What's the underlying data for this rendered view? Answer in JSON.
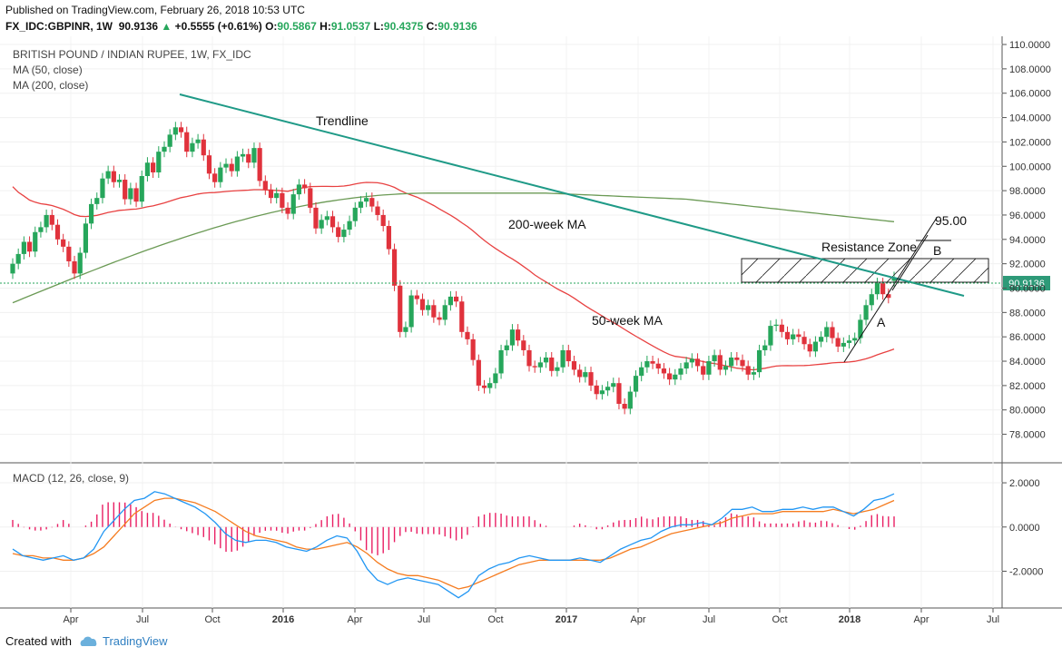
{
  "header": {
    "published": "Published on TradingView.com, February 26, 2018 10:53 UTC",
    "symbol": "FX_IDC:GBPINR, 1W",
    "last": "90.9136",
    "change": "+0.5555 (+0.61%)",
    "o_label": "O:",
    "o_val": "90.5867",
    "h_label": "H:",
    "h_val": "91.0537",
    "l_label": "L:",
    "l_val": "90.4375",
    "c_label": "C:",
    "c_val": "90.9136"
  },
  "footer": {
    "created_with": "Created with",
    "brand": "TradingView"
  },
  "colors": {
    "up": "#26a65b",
    "down": "#e0323c",
    "ma50": "#e84141",
    "ma200": "#6b9a55",
    "trend": "#1f9a87",
    "macd": "#2196f3",
    "signal": "#f57c20",
    "hist_up": "#e91e63"
  },
  "chart_data": [
    {
      "type": "candlestick",
      "title": "BRITISH POUND / INDIAN RUPEE, 1W, FX_IDC",
      "legend": [
        "MA (50, close)",
        "MA (200, close)"
      ],
      "x_ticks": [
        "Apr",
        "Jul",
        "Oct",
        "2016",
        "Apr",
        "Jul",
        "Oct",
        "2017",
        "Apr",
        "Jul",
        "Oct",
        "2018",
        "Apr",
        "Jul"
      ],
      "y_ticks": [
        "110.0000",
        "108.0000",
        "106.0000",
        "104.0000",
        "102.0000",
        "100.0000",
        "98.0000",
        "96.0000",
        "94.0000",
        "92.0000",
        "90.0000",
        "88.0000",
        "86.0000",
        "84.0000",
        "82.0000",
        "80.0000",
        "78.0000"
      ],
      "ylim": [
        77,
        110.3
      ],
      "last_price_label": "90.9136",
      "last_price": 90.9136,
      "close": [
        92,
        92.8,
        93.8,
        93,
        94.6,
        95,
        96,
        95.2,
        94,
        93.4,
        92.2,
        91.2,
        92.9,
        95.3,
        96.9,
        97.4,
        99,
        99.6,
        98.7,
        98.9,
        97.3,
        98.2,
        97.1,
        99.2,
        100.3,
        99.5,
        101.2,
        101.6,
        102.6,
        103.2,
        102.8,
        101.2,
        101.9,
        102.2,
        100.9,
        99.4,
        98.7,
        99.9,
        100.2,
        99.6,
        100.8,
        101,
        100.3,
        101.5,
        98.8,
        98.1,
        97.4,
        97.8,
        96.6,
        96.1,
        97.7,
        98.5,
        98.2,
        96.6,
        94.9,
        95.6,
        95.9,
        95,
        94.2,
        94.8,
        95.5,
        96.6,
        97.1,
        97.4,
        96.7,
        96,
        95.1,
        93.2,
        90.2,
        86.4,
        86.8,
        89.4,
        89.1,
        88.2,
        88.6,
        87.6,
        87.4,
        88.6,
        89.3,
        88.9,
        86.4,
        85.8,
        84.1,
        82,
        81.8,
        82.2,
        83,
        84.9,
        85.3,
        86.6,
        85.7,
        84.9,
        83.6,
        83.5,
        83.9,
        84.3,
        83.2,
        83.5,
        84.9,
        84,
        83.3,
        82.7,
        83.1,
        82,
        81.3,
        81.6,
        81.9,
        82.2,
        80.5,
        80.1,
        81.5,
        82.8,
        83.5,
        84,
        83.8,
        83.4,
        83,
        82.5,
        82.9,
        83.4,
        83.9,
        84.2,
        83.6,
        82.9,
        84,
        84.5,
        83.3,
        83.6,
        84.3,
        84.1,
        83.6,
        82.9,
        83.1,
        84.9,
        85.3,
        86.9,
        87,
        86.4,
        85.8,
        86.2,
        86,
        85.4,
        84.8,
        85.6,
        86,
        86.8,
        85.9,
        85.2,
        85.5,
        85.7,
        85.9,
        87.4,
        88.6,
        89.5,
        90.4,
        89.5,
        89.2,
        90.9
      ],
      "open": [
        91.2,
        92,
        92.8,
        93.8,
        93,
        94.6,
        95,
        96,
        95.2,
        94,
        93.4,
        92.2,
        91.2,
        92.9,
        95.3,
        96.9,
        97.4,
        99,
        99.6,
        98.7,
        98.9,
        97.3,
        98.2,
        97.1,
        99.2,
        100.3,
        99.5,
        101.2,
        101.6,
        102.6,
        103.2,
        102.8,
        101.2,
        101.9,
        102.2,
        100.9,
        99.4,
        98.7,
        99.9,
        100.2,
        99.6,
        100.8,
        101,
        100.3,
        101.5,
        98.8,
        98.1,
        97.4,
        97.8,
        96.6,
        96.1,
        97.7,
        98.5,
        98.2,
        96.6,
        94.9,
        95.6,
        95.9,
        95,
        94.2,
        94.8,
        95.5,
        96.6,
        97.1,
        97.4,
        96.7,
        96,
        95.1,
        93.2,
        90.2,
        86.4,
        86.8,
        89.4,
        89.1,
        88.2,
        88.6,
        87.6,
        87.4,
        88.6,
        89.3,
        88.9,
        86.4,
        85.8,
        84.1,
        82,
        81.8,
        82.2,
        83,
        84.9,
        85.3,
        86.6,
        85.7,
        84.9,
        83.6,
        83.5,
        83.9,
        84.3,
        83.2,
        83.5,
        84.9,
        84,
        83.3,
        82.7,
        83.1,
        82,
        81.3,
        81.6,
        81.9,
        82.2,
        80.5,
        80.1,
        81.5,
        82.8,
        83.5,
        84,
        83.8,
        83.4,
        83,
        82.5,
        82.9,
        83.4,
        83.9,
        84.2,
        83.6,
        82.9,
        84,
        84.5,
        83.3,
        83.6,
        84.3,
        84.1,
        83.6,
        82.9,
        83.1,
        84.9,
        85.3,
        86.9,
        87,
        86.4,
        85.8,
        86.2,
        86,
        85.4,
        84.8,
        85.6,
        86,
        86.8,
        85.9,
        85.2,
        85.5,
        85.7,
        85.9,
        87.4,
        88.6,
        89.5,
        90.4,
        89.5,
        90.6
      ],
      "annotations": {
        "trendline": "Trendline",
        "ma200": "200-week MA",
        "ma50": "50-week MA",
        "resistance": "Resistance Zone",
        "target": "95.00",
        "point_a": "A",
        "point_b": "B"
      }
    },
    {
      "type": "line",
      "title": "MACD (12, 26, close, 9)",
      "y_ticks": [
        "2.0000",
        "0.0000",
        "-2.0000"
      ],
      "ylim": [
        -3.5,
        2.7
      ],
      "series": [
        {
          "name": "MACD",
          "values": [
            -1,
            -1.3,
            -1.4,
            -1.5,
            -1.4,
            -1.3,
            -1.5,
            -1.4,
            -1,
            -0.2,
            0.3,
            0.8,
            1.2,
            1.3,
            1.6,
            1.5,
            1.3,
            1.1,
            0.9,
            0.6,
            0.2,
            -0.3,
            -0.6,
            -0.7,
            -0.6,
            -0.6,
            -0.7,
            -0.9,
            -1,
            -1.1,
            -0.9,
            -0.6,
            -0.4,
            -0.5,
            -1.1,
            -1.9,
            -2.4,
            -2.6,
            -2.4,
            -2.3,
            -2.4,
            -2.5,
            -2.6,
            -2.9,
            -3.2,
            -2.9,
            -2.2,
            -1.9,
            -1.7,
            -1.6,
            -1.4,
            -1.3,
            -1.4,
            -1.5,
            -1.5,
            -1.5,
            -1.4,
            -1.5,
            -1.6,
            -1.3,
            -1,
            -0.8,
            -0.6,
            -0.5,
            -0.2,
            0,
            0.1,
            0.1,
            0.2,
            0.1,
            0.4,
            0.8,
            0.8,
            0.9,
            0.7,
            0.7,
            0.8,
            0.8,
            0.9,
            0.8,
            0.9,
            0.9,
            0.7,
            0.5,
            0.8,
            1.2,
            1.3,
            1.5
          ]
        },
        {
          "name": "Signal",
          "values": [
            -1.2,
            -1.3,
            -1.3,
            -1.4,
            -1.4,
            -1.5,
            -1.5,
            -1.4,
            -1.2,
            -0.9,
            -0.4,
            0.1,
            0.6,
            0.9,
            1.2,
            1.3,
            1.3,
            1.2,
            1.1,
            0.9,
            0.7,
            0.4,
            0.1,
            -0.2,
            -0.4,
            -0.5,
            -0.6,
            -0.7,
            -0.9,
            -1,
            -1,
            -0.9,
            -0.8,
            -0.7,
            -0.9,
            -1.2,
            -1.6,
            -1.9,
            -2.1,
            -2.2,
            -2.2,
            -2.3,
            -2.4,
            -2.6,
            -2.8,
            -2.7,
            -2.5,
            -2.3,
            -2.1,
            -1.9,
            -1.7,
            -1.6,
            -1.5,
            -1.5,
            -1.5,
            -1.5,
            -1.5,
            -1.5,
            -1.5,
            -1.4,
            -1.2,
            -1,
            -0.9,
            -0.7,
            -0.5,
            -0.3,
            -0.2,
            -0.1,
            0,
            0.1,
            0.2,
            0.4,
            0.5,
            0.6,
            0.6,
            0.6,
            0.7,
            0.7,
            0.7,
            0.7,
            0.7,
            0.8,
            0.7,
            0.6,
            0.7,
            0.8,
            1,
            1.2
          ]
        }
      ]
    }
  ]
}
